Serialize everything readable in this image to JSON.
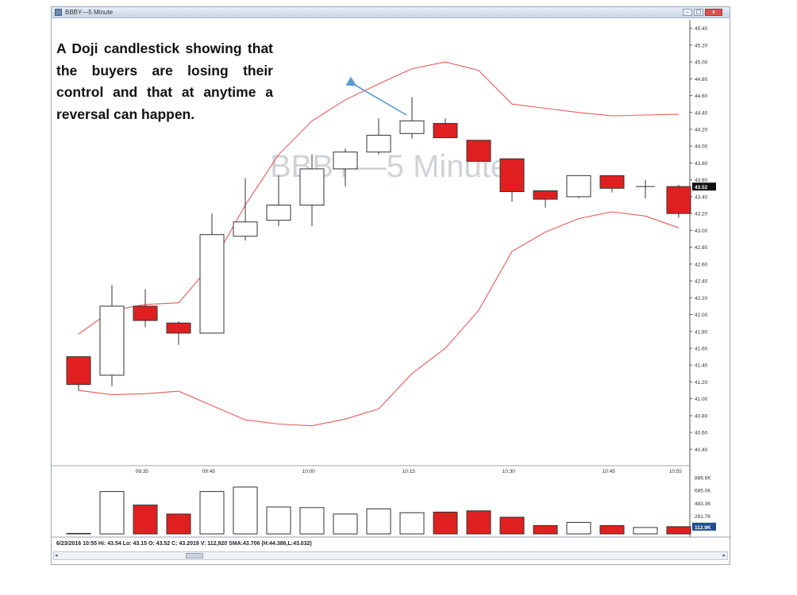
{
  "window": {
    "title": "BBBY—5 Minute",
    "buttons": {
      "minimize": "–",
      "maximize": "□",
      "close": "x"
    }
  },
  "annotation": "A Doji candlestick showing that the buyers are losing their control and that at anytime a reversal can happen.",
  "status": "6/23/2016 10:55   Hi: 43.54   Lo: 43.15   O: 43.52   C: 43.2019   V: 112,920   SMA:43.706     (H:44.386,L:43.032)",
  "colors": {
    "bear": "#e02020",
    "bull": "#ffffff",
    "band": "#e85b5b",
    "arrow": "#5b9bd5",
    "axis": "#555555"
  },
  "chart_data": {
    "type": "candlestick",
    "watermark": "BBBY—5 Minute",
    "price_axis": {
      "ylim": [
        40.3,
        45.5
      ],
      "ticks": [
        45.4,
        45.2,
        45.0,
        44.8,
        44.6,
        44.4,
        44.2,
        44.0,
        43.8,
        43.6,
        43.4,
        43.2,
        43.0,
        42.8,
        42.6,
        42.4,
        42.2,
        42.0,
        41.8,
        41.6,
        41.4,
        41.2,
        41.0,
        40.8,
        40.6,
        40.4
      ],
      "tick_labels": [
        "45.40",
        "45.20",
        "45.00",
        "44.80",
        "44.60",
        "44.40",
        "44.20",
        "44.00",
        "43.80",
        "43.60",
        "43.40",
        "43.20",
        "43.00",
        "42.80",
        "42.60",
        "42.40",
        "42.20",
        "42.00",
        "41.80",
        "41.60",
        "41.40",
        "41.20",
        "41.00",
        "40.80",
        "40.60",
        "40.40"
      ],
      "last_price_label": "43.52"
    },
    "time_axis": {
      "labels": [
        {
          "bar": 1.9,
          "text": "09:35"
        },
        {
          "bar": 3.9,
          "text": "09:45"
        },
        {
          "bar": 6.9,
          "text": "10:00"
        },
        {
          "bar": 9.9,
          "text": "10:15"
        },
        {
          "bar": 12.9,
          "text": "10:30"
        },
        {
          "bar": 15.9,
          "text": "10:45"
        },
        {
          "bar": 17.9,
          "text": "10:55"
        }
      ]
    },
    "candles": [
      {
        "o": 41.5,
        "h": 41.5,
        "l": 41.1,
        "c": 41.17
      },
      {
        "o": 41.28,
        "h": 42.35,
        "l": 41.15,
        "c": 42.1
      },
      {
        "o": 42.1,
        "h": 42.3,
        "l": 41.85,
        "c": 41.93
      },
      {
        "o": 41.9,
        "h": 41.92,
        "l": 41.64,
        "c": 41.78
      },
      {
        "o": 41.78,
        "h": 43.2,
        "l": 41.78,
        "c": 42.95
      },
      {
        "o": 42.93,
        "h": 43.62,
        "l": 42.88,
        "c": 43.1
      },
      {
        "o": 43.12,
        "h": 43.65,
        "l": 43.05,
        "c": 43.3
      },
      {
        "o": 43.3,
        "h": 43.9,
        "l": 43.05,
        "c": 43.73
      },
      {
        "o": 43.73,
        "h": 43.97,
        "l": 43.52,
        "c": 43.93
      },
      {
        "o": 43.93,
        "h": 44.33,
        "l": 43.9,
        "c": 44.13
      },
      {
        "o": 44.15,
        "h": 44.58,
        "l": 44.09,
        "c": 44.3
      },
      {
        "o": 44.27,
        "h": 44.33,
        "l": 44.1,
        "c": 44.1
      },
      {
        "o": 44.07,
        "h": 44.07,
        "l": 43.82,
        "c": 43.82
      },
      {
        "o": 43.85,
        "h": 43.85,
        "l": 43.34,
        "c": 43.46
      },
      {
        "o": 43.47,
        "h": 43.47,
        "l": 43.27,
        "c": 43.37
      },
      {
        "o": 43.4,
        "h": 43.65,
        "l": 43.38,
        "c": 43.65
      },
      {
        "o": 43.65,
        "h": 43.65,
        "l": 43.45,
        "c": 43.5
      },
      {
        "o": 43.52,
        "h": 43.6,
        "l": 43.38,
        "c": 43.52
      },
      {
        "o": 43.52,
        "h": 43.54,
        "l": 43.15,
        "c": 43.2
      }
    ],
    "bollinger_upper": [
      {
        "bar": 0,
        "v": 41.77
      },
      {
        "bar": 1,
        "v": 42.05
      },
      {
        "bar": 2,
        "v": 42.12
      },
      {
        "bar": 3,
        "v": 42.14
      },
      {
        "bar": 4,
        "v": 42.6
      },
      {
        "bar": 5,
        "v": 43.3
      },
      {
        "bar": 6,
        "v": 43.9
      },
      {
        "bar": 7,
        "v": 44.3
      },
      {
        "bar": 8,
        "v": 44.55
      },
      {
        "bar": 9,
        "v": 44.74
      },
      {
        "bar": 10,
        "v": 44.92
      },
      {
        "bar": 11,
        "v": 45.0
      },
      {
        "bar": 12,
        "v": 44.9
      },
      {
        "bar": 13,
        "v": 44.5
      },
      {
        "bar": 14,
        "v": 44.45
      },
      {
        "bar": 15,
        "v": 44.4
      },
      {
        "bar": 16,
        "v": 44.36
      },
      {
        "bar": 17,
        "v": 44.37
      },
      {
        "bar": 18,
        "v": 44.38
      }
    ],
    "bollinger_lower": [
      {
        "bar": 0,
        "v": 41.1
      },
      {
        "bar": 1,
        "v": 41.05
      },
      {
        "bar": 2,
        "v": 41.06
      },
      {
        "bar": 3,
        "v": 41.09
      },
      {
        "bar": 4,
        "v": 40.92
      },
      {
        "bar": 5,
        "v": 40.75
      },
      {
        "bar": 6,
        "v": 40.7
      },
      {
        "bar": 7,
        "v": 40.68
      },
      {
        "bar": 8,
        "v": 40.76
      },
      {
        "bar": 9,
        "v": 40.88
      },
      {
        "bar": 10,
        "v": 41.3
      },
      {
        "bar": 11,
        "v": 41.6
      },
      {
        "bar": 12,
        "v": 42.05
      },
      {
        "bar": 13,
        "v": 42.75
      },
      {
        "bar": 14,
        "v": 42.98
      },
      {
        "bar": 15,
        "v": 43.14
      },
      {
        "bar": 16,
        "v": 43.22
      },
      {
        "bar": 17,
        "v": 43.17
      },
      {
        "bar": 18,
        "v": 43.03
      }
    ],
    "volume": {
      "ylim": [
        0,
        890
      ],
      "ticks": [
        {
          "v": 886.6,
          "text": "886.6K"
        },
        {
          "v": 685.0,
          "text": "685.0K"
        },
        {
          "v": 483.3,
          "text": "483.3K"
        },
        {
          "v": 281.7,
          "text": "281.7K"
        }
      ],
      "last_label": "112.9K",
      "values": [
        8,
        660,
        450,
        310,
        660,
        730,
        420,
        410,
        310,
        390,
        330,
        340,
        360,
        260,
        130,
        180,
        130,
        100,
        113
      ]
    }
  }
}
